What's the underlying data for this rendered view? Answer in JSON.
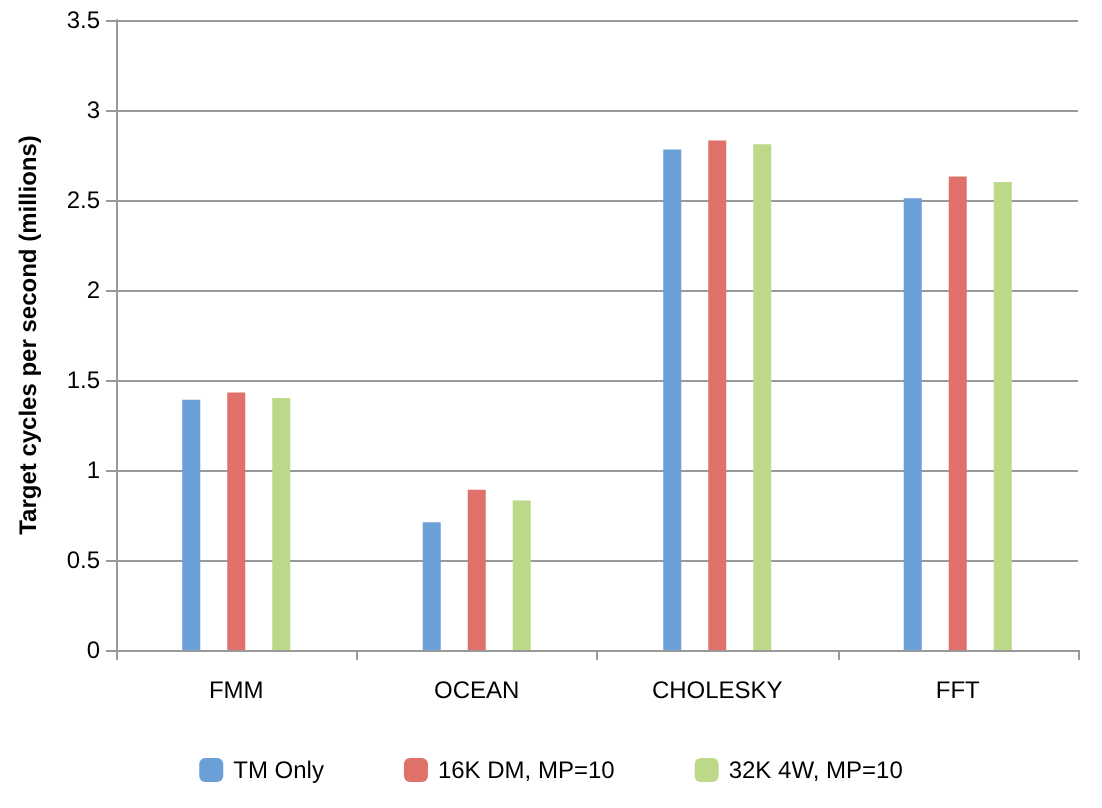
{
  "chart_data": {
    "type": "bar",
    "ylabel": "Target cycles per second (millions)",
    "categories": [
      "FMM",
      "OCEAN",
      "CHOLESKY",
      "FFT"
    ],
    "series": [
      {
        "name": "TM Only",
        "color": "#6a9fd8",
        "values": [
          1.39,
          0.71,
          2.78,
          2.51
        ]
      },
      {
        "name": "16K DM, MP=10",
        "color": "#e0706a",
        "values": [
          1.43,
          0.89,
          2.83,
          2.63
        ]
      },
      {
        "name": "32K 4W, MP=10",
        "color": "#bcd98a",
        "values": [
          1.4,
          0.83,
          2.81,
          2.6
        ]
      }
    ],
    "ylim": [
      0,
      3.5
    ],
    "yticks": [
      0,
      0.5,
      1,
      1.5,
      2,
      2.5,
      3,
      3.5
    ],
    "grid": "y",
    "legend": "bottom"
  }
}
